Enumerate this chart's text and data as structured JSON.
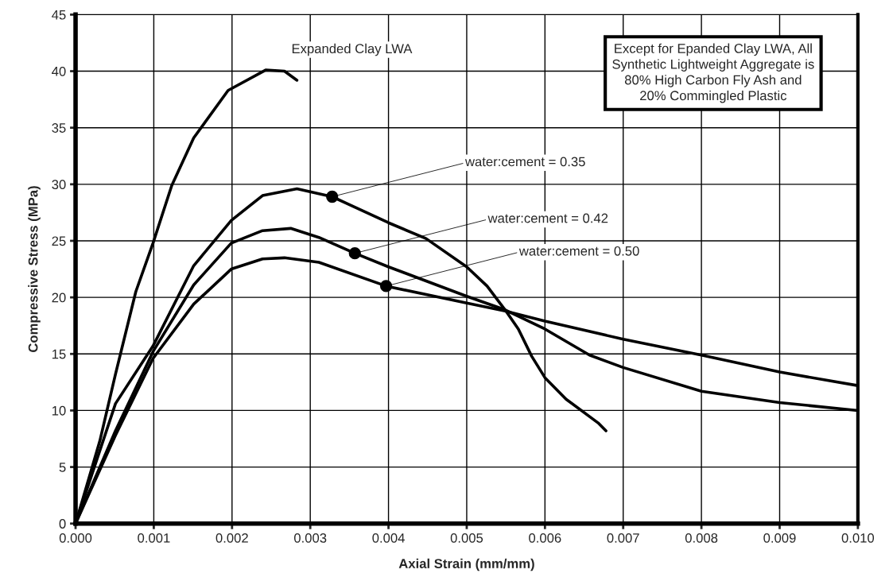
{
  "chart_data": {
    "type": "line",
    "xlabel": "Axial Strain (mm/mm)",
    "ylabel": "Compressive Stress (MPa)",
    "xlim": [
      0,
      0.01
    ],
    "ylim": [
      0,
      45
    ],
    "xticks": [
      {
        "value": 0,
        "label": "0.000"
      },
      0.001,
      0.002,
      0.003,
      0.004,
      0.005,
      0.006,
      0.007,
      0.008,
      0.009,
      {
        "value": 0.01,
        "label": "0.010"
      }
    ],
    "yticks": [
      0,
      5,
      10,
      15,
      20,
      25,
      30,
      35,
      40,
      45
    ],
    "grid": true,
    "marker": "none",
    "line_style": "solid",
    "series": [
      {
        "name": "Expanded Clay LWA",
        "color": "#000000",
        "x": [
          0,
          0.00031,
          0.00051,
          0.00077,
          0.00099,
          0.00123,
          0.00151,
          0.00195,
          0.00243,
          0.00267,
          0.00283
        ],
        "values": [
          0,
          7.3,
          13.2,
          20.5,
          24.8,
          29.9,
          34.1,
          38.3,
          40.1,
          40,
          39.2
        ]
      },
      {
        "color": "#000000",
        "x": [
          0,
          0.00051,
          0.00099,
          0.00151,
          0.00199,
          0.00239,
          0.00283,
          0.00328,
          0.004,
          0.00448,
          0.005,
          0.00526,
          0.00549,
          0.00566,
          0.00583,
          0.006,
          0.00627,
          0.00668,
          0.00678
        ],
        "values": [
          0,
          10.6,
          15.7,
          22.8,
          26.8,
          29.0,
          29.6,
          28.9,
          26.6,
          25.2,
          22.7,
          21.0,
          18.9,
          17.2,
          14.8,
          12.9,
          11.0,
          8.9,
          8.2
        ]
      },
      {
        "color": "#000000",
        "x": [
          0,
          0.00051,
          0.00099,
          0.00151,
          0.00199,
          0.00239,
          0.00275,
          0.00311,
          0.00357,
          0.004,
          0.005,
          0.00549,
          0.006,
          0.00657,
          0.007,
          0.008,
          0.009,
          0.01
        ],
        "values": [
          0,
          8.2,
          15.2,
          21.1,
          24.8,
          25.9,
          26.1,
          25.3,
          23.9,
          22.7,
          20.1,
          18.9,
          17.2,
          14.9,
          13.8,
          11.7,
          10.7,
          10.0
        ]
      },
      {
        "color": "#000000",
        "x": [
          0,
          0.00051,
          0.00099,
          0.00151,
          0.00199,
          0.00239,
          0.00267,
          0.00311,
          0.00397,
          0.005,
          0.00549,
          0.006,
          0.007,
          0.008,
          0.009,
          0.01
        ],
        "values": [
          0,
          7.8,
          14.6,
          19.4,
          22.5,
          23.4,
          23.5,
          23.1,
          21.0,
          19.5,
          18.8,
          17.9,
          16.3,
          14.9,
          13.4,
          12.2
        ]
      }
    ],
    "annotations": [
      {
        "text": "water:cement = 0.35",
        "x": 0.00328,
        "y": 28.9
      },
      {
        "text": "water:cement = 0.42",
        "x": 0.00357,
        "y": 23.9
      },
      {
        "text": "water:cement = 0.50",
        "x": 0.00397,
        "y": 21.0
      },
      "Except for Epanded Clay LWA, All\nSynthetic Lightweight Aggregate is\n80% High Carbon Fly Ash and\n20% Commingled Plastic"
    ]
  }
}
